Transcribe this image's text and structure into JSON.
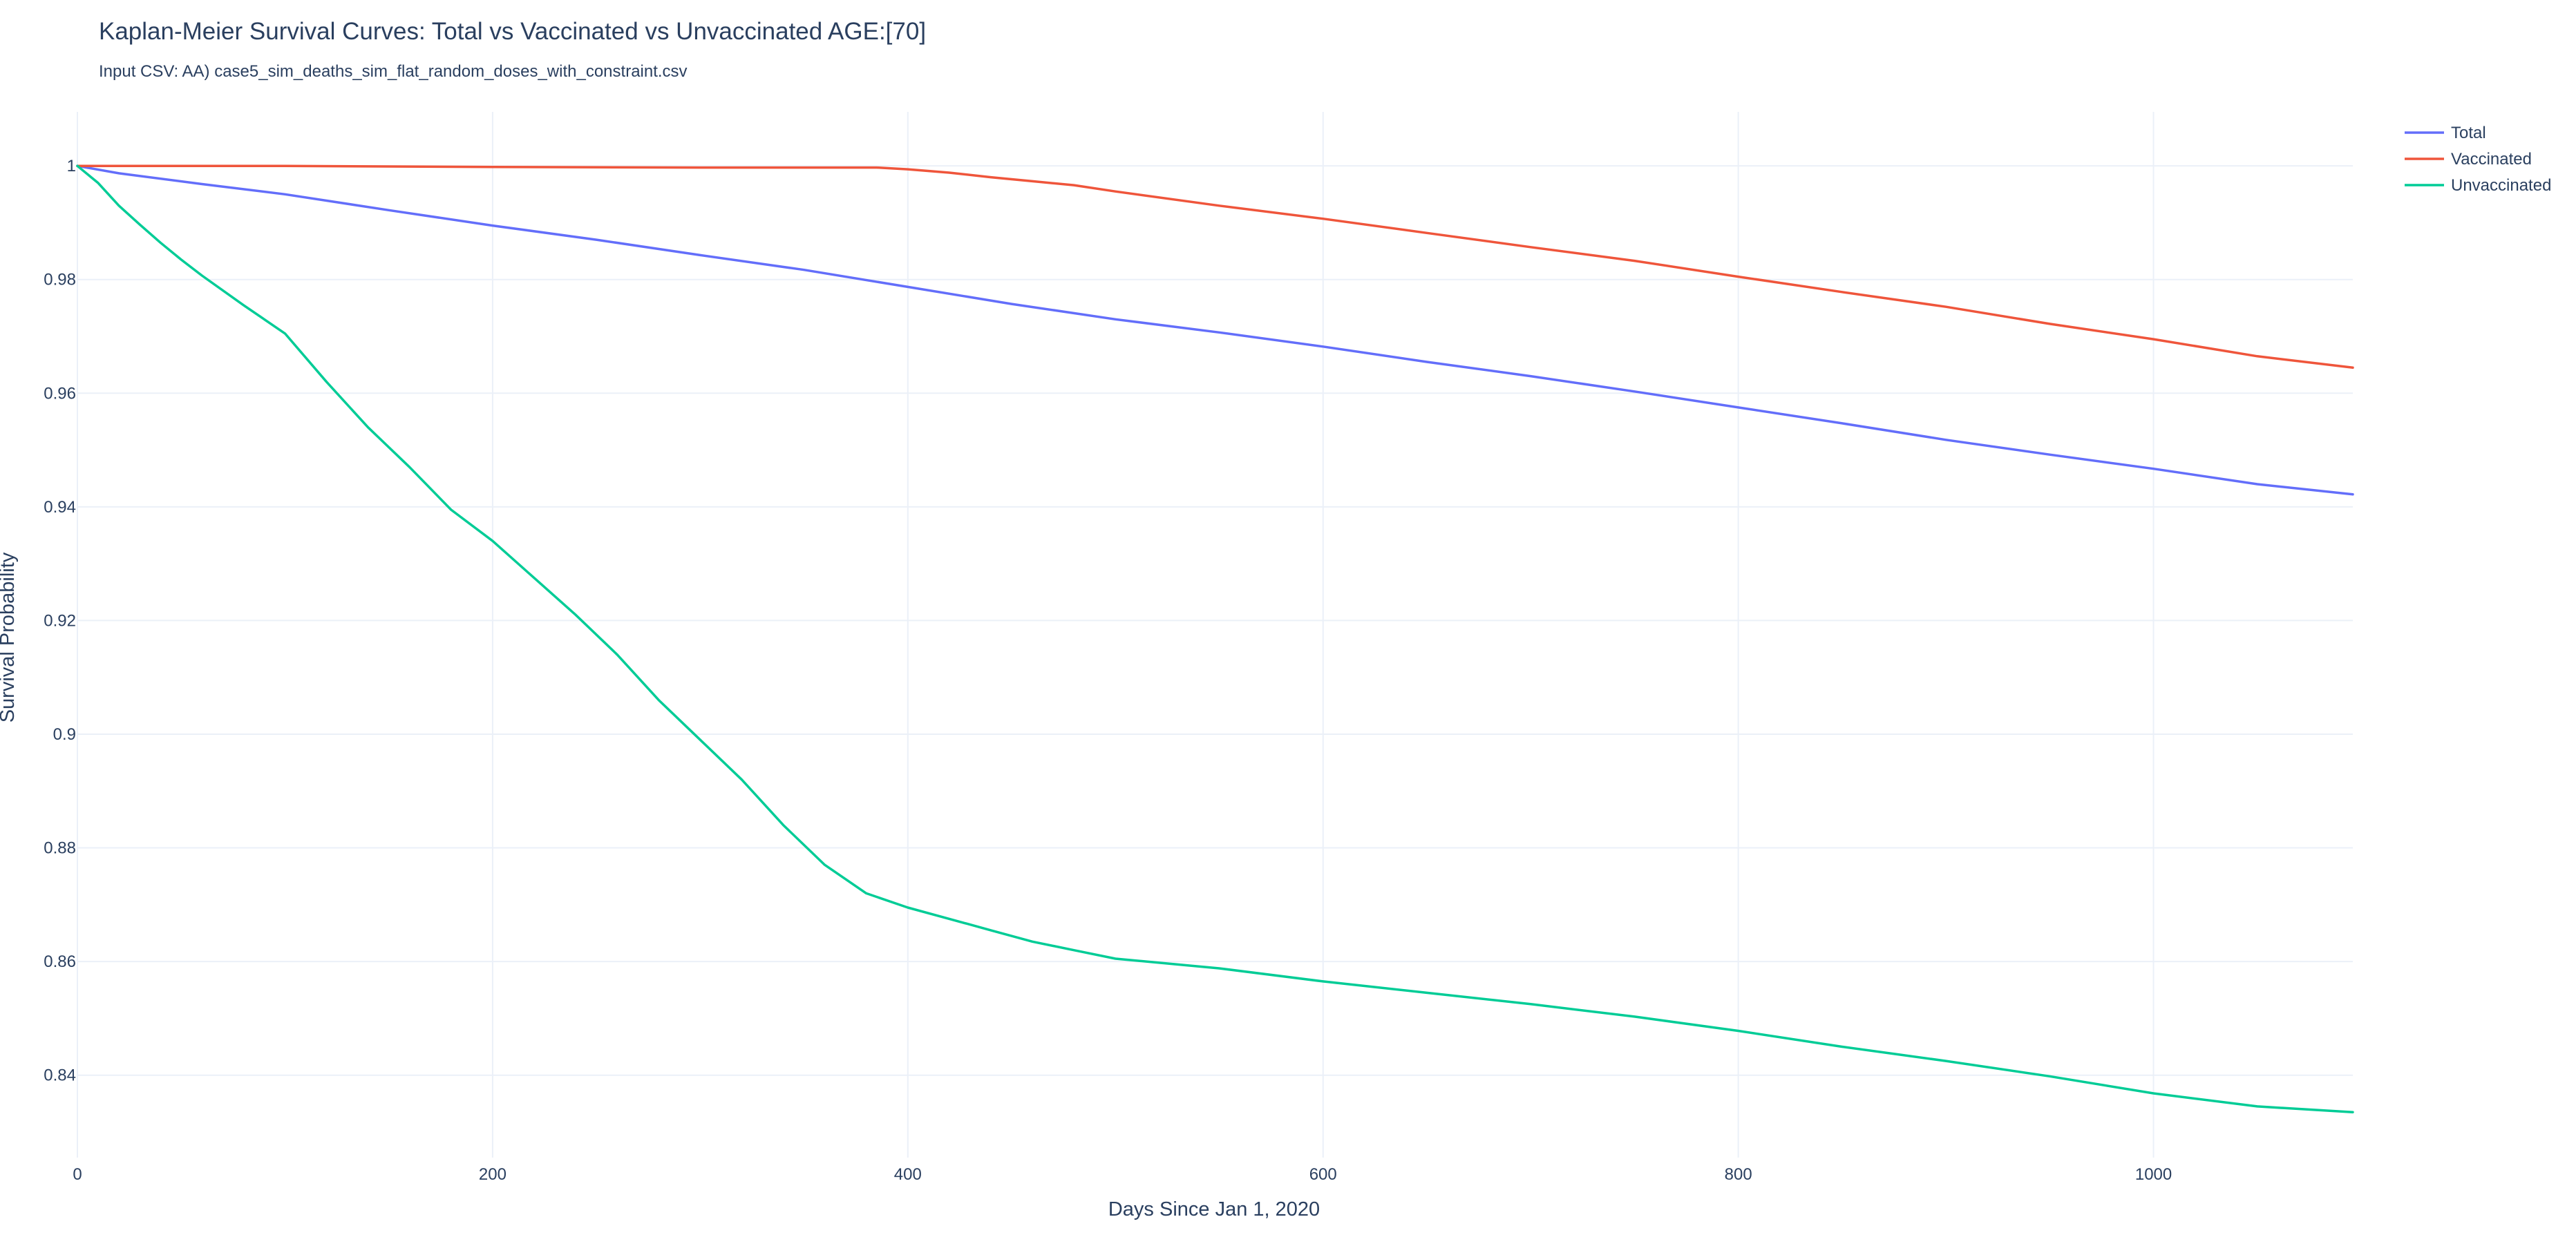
{
  "chart_data": {
    "type": "line",
    "title": "Kaplan-Meier Survival Curves: Total vs Vaccinated vs Unvaccinated AGE:[70]",
    "subtitle": "Input CSV: AA) case5_sim_deaths_sim_flat_random_doses_with_constraint.csv",
    "xlabel": "Days Since Jan 1, 2020",
    "ylabel": "Survival Probability",
    "xlim": [
      0,
      1096
    ],
    "ylim": [
      0.8255,
      1.0095
    ],
    "x_ticks": [
      0,
      200,
      400,
      600,
      800,
      1000
    ],
    "y_ticks": [
      0.84,
      0.86,
      0.88,
      0.9,
      0.92,
      0.94,
      0.96,
      0.98,
      1
    ],
    "y_tick_labels": [
      "0.84",
      "0.86",
      "0.88",
      "0.9",
      "0.92",
      "0.94",
      "0.96",
      "0.98",
      "1"
    ],
    "grid": true,
    "legend_position": "top-right",
    "series": [
      {
        "name": "Total",
        "color": "#636efa",
        "x": [
          0,
          20,
          60,
          100,
          150,
          200,
          250,
          300,
          350,
          400,
          450,
          500,
          550,
          600,
          650,
          700,
          750,
          800,
          850,
          900,
          950,
          1000,
          1050,
          1096
        ],
        "y": [
          1.0,
          0.9987,
          0.9968,
          0.995,
          0.9922,
          0.9895,
          0.987,
          0.9843,
          0.9817,
          0.9787,
          0.9757,
          0.973,
          0.9707,
          0.9682,
          0.9655,
          0.963,
          0.9603,
          0.9575,
          0.9547,
          0.9518,
          0.9492,
          0.9467,
          0.944,
          0.9422
        ]
      },
      {
        "name": "Vaccinated",
        "color": "#ef553b",
        "x": [
          0,
          100,
          200,
          300,
          385,
          400,
          420,
          440,
          460,
          480,
          500,
          550,
          600,
          650,
          700,
          750,
          800,
          850,
          900,
          950,
          1000,
          1050,
          1096
        ],
        "y": [
          1.0,
          1.0,
          0.9998,
          0.9997,
          0.9997,
          0.9994,
          0.9988,
          0.998,
          0.9973,
          0.9966,
          0.9955,
          0.993,
          0.9907,
          0.9882,
          0.9857,
          0.9833,
          0.9805,
          0.9778,
          0.9752,
          0.9722,
          0.9695,
          0.9665,
          0.9645
        ]
      },
      {
        "name": "Unvaccinated",
        "color": "#00cc96",
        "x": [
          0,
          10,
          20,
          30,
          40,
          50,
          60,
          80,
          100,
          120,
          140,
          160,
          180,
          200,
          220,
          240,
          260,
          280,
          300,
          320,
          340,
          360,
          380,
          400,
          420,
          440,
          460,
          480,
          500,
          550,
          600,
          650,
          700,
          750,
          800,
          850,
          900,
          950,
          1000,
          1050,
          1096
        ],
        "y": [
          1.0,
          0.997,
          0.993,
          0.9897,
          0.9865,
          0.9835,
          0.9807,
          0.9755,
          0.9705,
          0.962,
          0.954,
          0.947,
          0.9395,
          0.934,
          0.9275,
          0.921,
          0.914,
          0.906,
          0.899,
          0.892,
          0.884,
          0.877,
          0.872,
          0.8695,
          0.8675,
          0.8655,
          0.8635,
          0.862,
          0.8605,
          0.8588,
          0.8565,
          0.8545,
          0.8525,
          0.8503,
          0.8478,
          0.845,
          0.8425,
          0.8398,
          0.8368,
          0.8345,
          0.8335
        ]
      }
    ]
  }
}
